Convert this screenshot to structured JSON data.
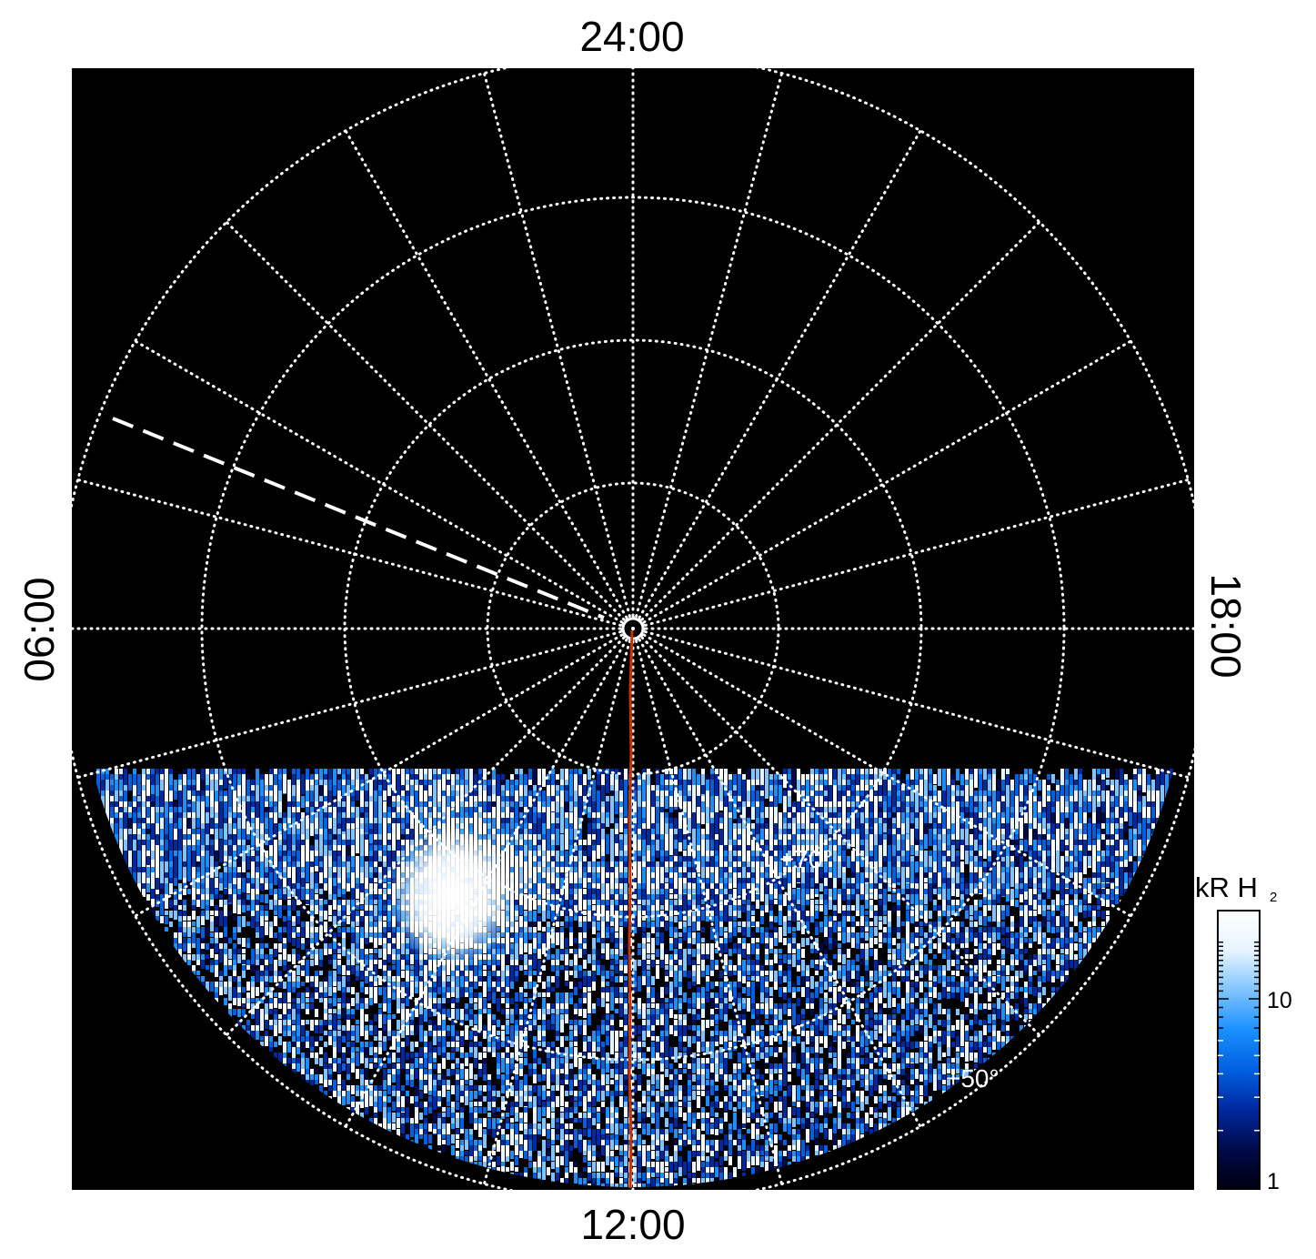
{
  "projection": {
    "type": "polar",
    "local_time_labels": {
      "top": "24:00",
      "bottom": "12:00",
      "left": "06:00",
      "right": "18:00"
    },
    "latitude_labels": [
      "+70°",
      "+50°"
    ],
    "background_color": "#000000",
    "grid_color": "#ffffff",
    "grid_style": "dotted",
    "meridian_line_color": "#cc3300",
    "dashed_marker_color": "#ffffff"
  },
  "colorbar": {
    "title_main": "kR H",
    "title_sub": "2",
    "scale": "log",
    "tick_labels": [
      "10",
      "1"
    ],
    "colors": [
      "#000010",
      "#000a4a",
      "#0028a0",
      "#0060e0",
      "#1a90ff",
      "#80c4ff",
      "#e6f4ff",
      "#ffffff"
    ]
  }
}
